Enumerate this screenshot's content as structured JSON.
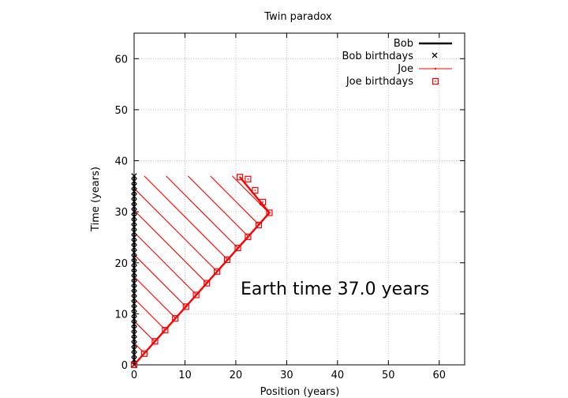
{
  "chart_data": {
    "type": "line",
    "title": "Twin paradox",
    "xlabel": "Position (years)",
    "ylabel": "Time (years)",
    "xlim": [
      0,
      65
    ],
    "ylim": [
      0,
      65
    ],
    "xticks": [
      0,
      10,
      20,
      30,
      40,
      50,
      60
    ],
    "yticks": [
      0,
      10,
      20,
      30,
      40,
      50,
      60
    ],
    "grid": true,
    "legend_position": "top-right",
    "annotation": "Earth time 37.0 years",
    "colors": {
      "bob": "#000000",
      "joe": "#ff0000",
      "grid": "#bbbbbb"
    },
    "series": [
      {
        "name": "Bob",
        "kind": "line",
        "x": [
          0,
          0
        ],
        "y": [
          0,
          37
        ]
      },
      {
        "name": "Bob birthdays",
        "kind": "points",
        "marker": "x",
        "x": [
          0,
          0,
          0,
          0,
          0,
          0,
          0,
          0,
          0,
          0,
          0,
          0,
          0,
          0,
          0,
          0,
          0,
          0,
          0,
          0,
          0,
          0,
          0,
          0,
          0,
          0,
          0,
          0,
          0,
          0,
          0,
          0,
          0,
          0,
          0,
          0,
          0,
          0
        ],
        "y": [
          0,
          1,
          2,
          3,
          4,
          5,
          6,
          7,
          8,
          9,
          10,
          11,
          12,
          13,
          14,
          15,
          16,
          17,
          18,
          19,
          20,
          21,
          22,
          23,
          24,
          25,
          26,
          27,
          28,
          29,
          30,
          31,
          32,
          33,
          34,
          35,
          36,
          37
        ]
      },
      {
        "name": "Joe",
        "kind": "line",
        "x": [
          0,
          26.6,
          20.8
        ],
        "y": [
          0,
          29.8,
          36.8
        ]
      },
      {
        "name": "Joe birthdays",
        "kind": "points",
        "marker": "square",
        "x": [
          0,
          2.0,
          4.1,
          6.1,
          8.1,
          10.2,
          12.2,
          14.3,
          16.3,
          18.3,
          20.4,
          22.4,
          24.5,
          26.6,
          25.3,
          23.8,
          22.4,
          20.8
        ],
        "y": [
          0,
          2.2,
          4.6,
          6.8,
          9.1,
          11.4,
          13.7,
          16.0,
          18.3,
          20.6,
          22.9,
          25.1,
          27.4,
          29.8,
          31.9,
          34.2,
          36.4,
          36.8
        ]
      },
      {
        "name": "Joe signals",
        "kind": "segments",
        "segments": [
          [
            [
              0,
              4.3
            ],
            [
              2.0,
              2.3
            ]
          ],
          [
            [
              0,
              8.6
            ],
            [
              4.1,
              4.5
            ]
          ],
          [
            [
              0,
              13.0
            ],
            [
              6.1,
              6.9
            ]
          ],
          [
            [
              0,
              17.3
            ],
            [
              8.1,
              9.2
            ]
          ],
          [
            [
              0,
              21.6
            ],
            [
              10.2,
              11.4
            ]
          ],
          [
            [
              0,
              26.0
            ],
            [
              12.2,
              13.8
            ]
          ],
          [
            [
              0,
              30.3
            ],
            [
              14.3,
              16.0
            ]
          ],
          [
            [
              0,
              34.6
            ],
            [
              16.3,
              18.3
            ]
          ],
          [
            [
              2.0,
              37.0
            ],
            [
              18.3,
              20.7
            ]
          ],
          [
            [
              6.3,
              37.0
            ],
            [
              20.4,
              22.9
            ]
          ],
          [
            [
              10.6,
              37.0
            ],
            [
              22.4,
              25.2
            ]
          ],
          [
            [
              15.0,
              37.0
            ],
            [
              24.5,
              27.5
            ]
          ],
          [
            [
              19.3,
              37.0
            ],
            [
              26.6,
              29.7
            ]
          ]
        ]
      }
    ]
  },
  "legend": {
    "entries": [
      "Bob",
      "Bob birthdays",
      "Joe",
      "Joe birthdays"
    ]
  }
}
